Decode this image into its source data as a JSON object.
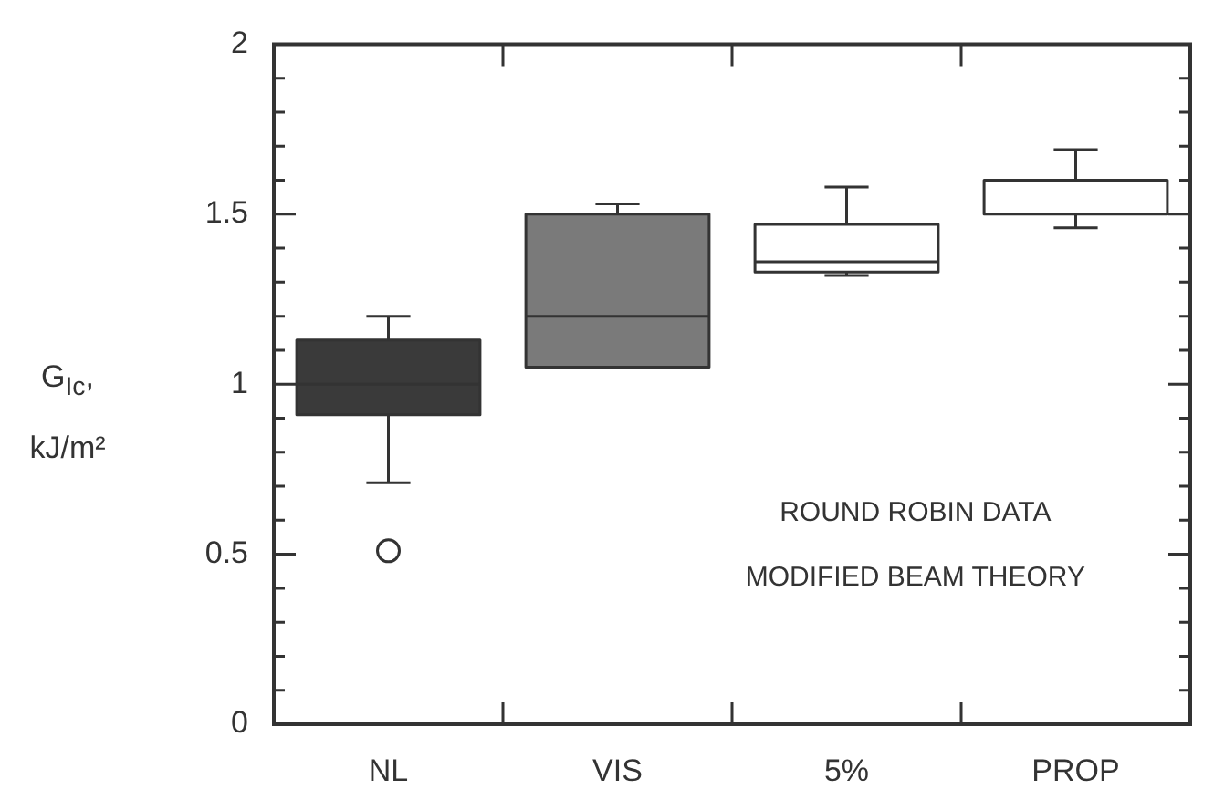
{
  "chart_data": {
    "type": "box",
    "ylabel": "G$_{Ic}$, kJ/m²",
    "categories": [
      "NL",
      "VIS",
      "5%",
      "PROP"
    ],
    "colors": [
      "#3a3a3a",
      "#7a7a7a",
      "#ffffff",
      "#ffffff"
    ],
    "boxes": [
      {
        "low": 0.71,
        "q1": 0.91,
        "median": 1.0,
        "q3": 1.13,
        "high": 1.2,
        "outliers": [
          0.51
        ]
      },
      {
        "low": 1.05,
        "q1": 1.05,
        "median": 1.2,
        "q3": 1.5,
        "high": 1.53
      },
      {
        "low": 1.32,
        "q1": 1.33,
        "median": 1.36,
        "q3": 1.47,
        "high": 1.58
      },
      {
        "low": 1.46,
        "q1": 1.5,
        "median": 1.6,
        "q3": 1.6,
        "high": 1.69
      }
    ],
    "ylim": [
      0,
      2
    ],
    "yticks": [
      0,
      {
        "value": 0.1,
        "label": null
      },
      {
        "value": 0.2,
        "label": null
      },
      {
        "value": 0.3,
        "label": null
      },
      {
        "value": 0.4,
        "label": null
      },
      0.5,
      {
        "value": 0.6,
        "label": null
      },
      {
        "value": 0.7,
        "label": null
      },
      {
        "value": 0.8,
        "label": null
      },
      {
        "value": 0.9,
        "label": null
      },
      1,
      {
        "value": 1.1,
        "label": null
      },
      {
        "value": 1.2,
        "label": null
      },
      {
        "value": 1.3,
        "label": null
      },
      {
        "value": 1.4,
        "label": null
      },
      1.5,
      {
        "value": 1.6,
        "label": null
      },
      {
        "value": 1.7,
        "label": null
      },
      {
        "value": 1.8,
        "label": null
      },
      {
        "value": 1.9,
        "label": null
      },
      2
    ],
    "annotations": [
      "ROUND ROBIN DATA",
      "MODIFIED BEAM THEORY"
    ],
    "grid": false,
    "legend": false
  }
}
